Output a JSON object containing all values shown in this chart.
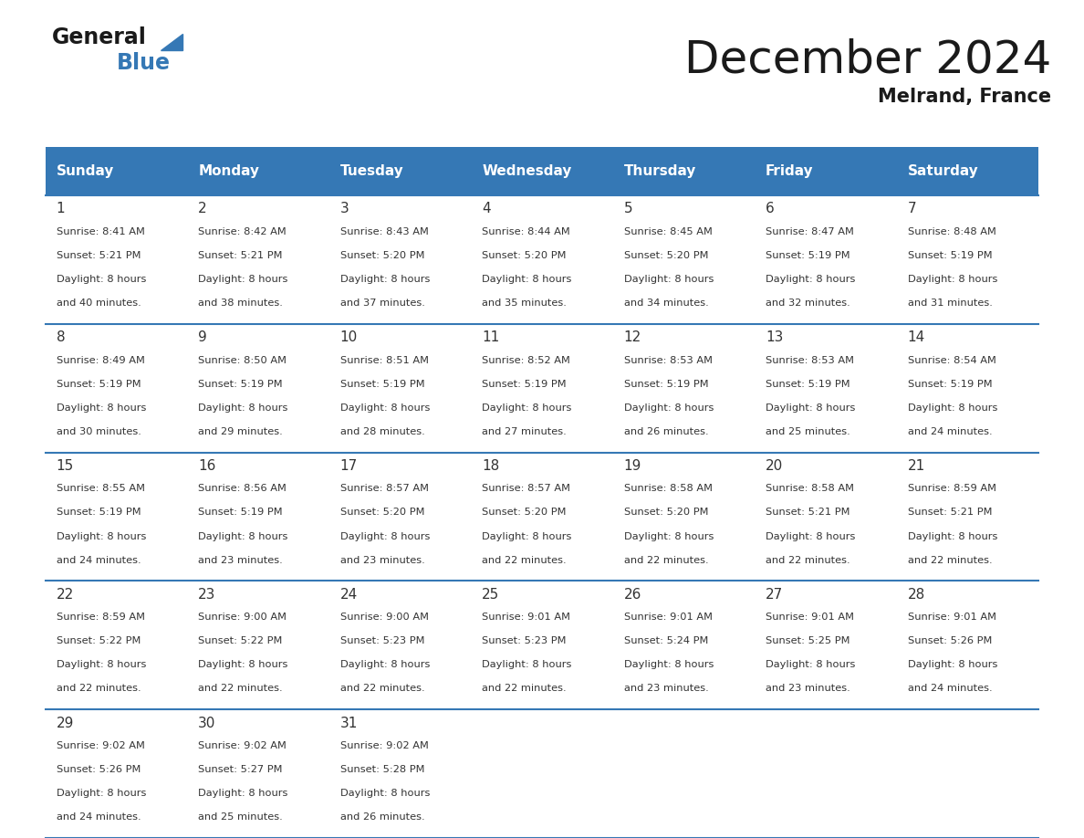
{
  "title": "December 2024",
  "subtitle": "Melrand, France",
  "days_of_week": [
    "Sunday",
    "Monday",
    "Tuesday",
    "Wednesday",
    "Thursday",
    "Friday",
    "Saturday"
  ],
  "header_bg": "#3578b5",
  "header_text": "#ffffff",
  "cell_bg": "#ffffff",
  "row_line_color": "#3578b5",
  "text_color": "#333333",
  "calendar_data": [
    [
      {
        "day": 1,
        "sunrise": "8:41 AM",
        "sunset": "5:21 PM",
        "daylight_line1": "Daylight: 8 hours",
        "daylight_line2": "and 40 minutes."
      },
      {
        "day": 2,
        "sunrise": "8:42 AM",
        "sunset": "5:21 PM",
        "daylight_line1": "Daylight: 8 hours",
        "daylight_line2": "and 38 minutes."
      },
      {
        "day": 3,
        "sunrise": "8:43 AM",
        "sunset": "5:20 PM",
        "daylight_line1": "Daylight: 8 hours",
        "daylight_line2": "and 37 minutes."
      },
      {
        "day": 4,
        "sunrise": "8:44 AM",
        "sunset": "5:20 PM",
        "daylight_line1": "Daylight: 8 hours",
        "daylight_line2": "and 35 minutes."
      },
      {
        "day": 5,
        "sunrise": "8:45 AM",
        "sunset": "5:20 PM",
        "daylight_line1": "Daylight: 8 hours",
        "daylight_line2": "and 34 minutes."
      },
      {
        "day": 6,
        "sunrise": "8:47 AM",
        "sunset": "5:19 PM",
        "daylight_line1": "Daylight: 8 hours",
        "daylight_line2": "and 32 minutes."
      },
      {
        "day": 7,
        "sunrise": "8:48 AM",
        "sunset": "5:19 PM",
        "daylight_line1": "Daylight: 8 hours",
        "daylight_line2": "and 31 minutes."
      }
    ],
    [
      {
        "day": 8,
        "sunrise": "8:49 AM",
        "sunset": "5:19 PM",
        "daylight_line1": "Daylight: 8 hours",
        "daylight_line2": "and 30 minutes."
      },
      {
        "day": 9,
        "sunrise": "8:50 AM",
        "sunset": "5:19 PM",
        "daylight_line1": "Daylight: 8 hours",
        "daylight_line2": "and 29 minutes."
      },
      {
        "day": 10,
        "sunrise": "8:51 AM",
        "sunset": "5:19 PM",
        "daylight_line1": "Daylight: 8 hours",
        "daylight_line2": "and 28 minutes."
      },
      {
        "day": 11,
        "sunrise": "8:52 AM",
        "sunset": "5:19 PM",
        "daylight_line1": "Daylight: 8 hours",
        "daylight_line2": "and 27 minutes."
      },
      {
        "day": 12,
        "sunrise": "8:53 AM",
        "sunset": "5:19 PM",
        "daylight_line1": "Daylight: 8 hours",
        "daylight_line2": "and 26 minutes."
      },
      {
        "day": 13,
        "sunrise": "8:53 AM",
        "sunset": "5:19 PM",
        "daylight_line1": "Daylight: 8 hours",
        "daylight_line2": "and 25 minutes."
      },
      {
        "day": 14,
        "sunrise": "8:54 AM",
        "sunset": "5:19 PM",
        "daylight_line1": "Daylight: 8 hours",
        "daylight_line2": "and 24 minutes."
      }
    ],
    [
      {
        "day": 15,
        "sunrise": "8:55 AM",
        "sunset": "5:19 PM",
        "daylight_line1": "Daylight: 8 hours",
        "daylight_line2": "and 24 minutes."
      },
      {
        "day": 16,
        "sunrise": "8:56 AM",
        "sunset": "5:19 PM",
        "daylight_line1": "Daylight: 8 hours",
        "daylight_line2": "and 23 minutes."
      },
      {
        "day": 17,
        "sunrise": "8:57 AM",
        "sunset": "5:20 PM",
        "daylight_line1": "Daylight: 8 hours",
        "daylight_line2": "and 23 minutes."
      },
      {
        "day": 18,
        "sunrise": "8:57 AM",
        "sunset": "5:20 PM",
        "daylight_line1": "Daylight: 8 hours",
        "daylight_line2": "and 22 minutes."
      },
      {
        "day": 19,
        "sunrise": "8:58 AM",
        "sunset": "5:20 PM",
        "daylight_line1": "Daylight: 8 hours",
        "daylight_line2": "and 22 minutes."
      },
      {
        "day": 20,
        "sunrise": "8:58 AM",
        "sunset": "5:21 PM",
        "daylight_line1": "Daylight: 8 hours",
        "daylight_line2": "and 22 minutes."
      },
      {
        "day": 21,
        "sunrise": "8:59 AM",
        "sunset": "5:21 PM",
        "daylight_line1": "Daylight: 8 hours",
        "daylight_line2": "and 22 minutes."
      }
    ],
    [
      {
        "day": 22,
        "sunrise": "8:59 AM",
        "sunset": "5:22 PM",
        "daylight_line1": "Daylight: 8 hours",
        "daylight_line2": "and 22 minutes."
      },
      {
        "day": 23,
        "sunrise": "9:00 AM",
        "sunset": "5:22 PM",
        "daylight_line1": "Daylight: 8 hours",
        "daylight_line2": "and 22 minutes."
      },
      {
        "day": 24,
        "sunrise": "9:00 AM",
        "sunset": "5:23 PM",
        "daylight_line1": "Daylight: 8 hours",
        "daylight_line2": "and 22 minutes."
      },
      {
        "day": 25,
        "sunrise": "9:01 AM",
        "sunset": "5:23 PM",
        "daylight_line1": "Daylight: 8 hours",
        "daylight_line2": "and 22 minutes."
      },
      {
        "day": 26,
        "sunrise": "9:01 AM",
        "sunset": "5:24 PM",
        "daylight_line1": "Daylight: 8 hours",
        "daylight_line2": "and 23 minutes."
      },
      {
        "day": 27,
        "sunrise": "9:01 AM",
        "sunset": "5:25 PM",
        "daylight_line1": "Daylight: 8 hours",
        "daylight_line2": "and 23 minutes."
      },
      {
        "day": 28,
        "sunrise": "9:01 AM",
        "sunset": "5:26 PM",
        "daylight_line1": "Daylight: 8 hours",
        "daylight_line2": "and 24 minutes."
      }
    ],
    [
      {
        "day": 29,
        "sunrise": "9:02 AM",
        "sunset": "5:26 PM",
        "daylight_line1": "Daylight: 8 hours",
        "daylight_line2": "and 24 minutes."
      },
      {
        "day": 30,
        "sunrise": "9:02 AM",
        "sunset": "5:27 PM",
        "daylight_line1": "Daylight: 8 hours",
        "daylight_line2": "and 25 minutes."
      },
      {
        "day": 31,
        "sunrise": "9:02 AM",
        "sunset": "5:28 PM",
        "daylight_line1": "Daylight: 8 hours",
        "daylight_line2": "and 26 minutes."
      },
      null,
      null,
      null,
      null
    ]
  ]
}
